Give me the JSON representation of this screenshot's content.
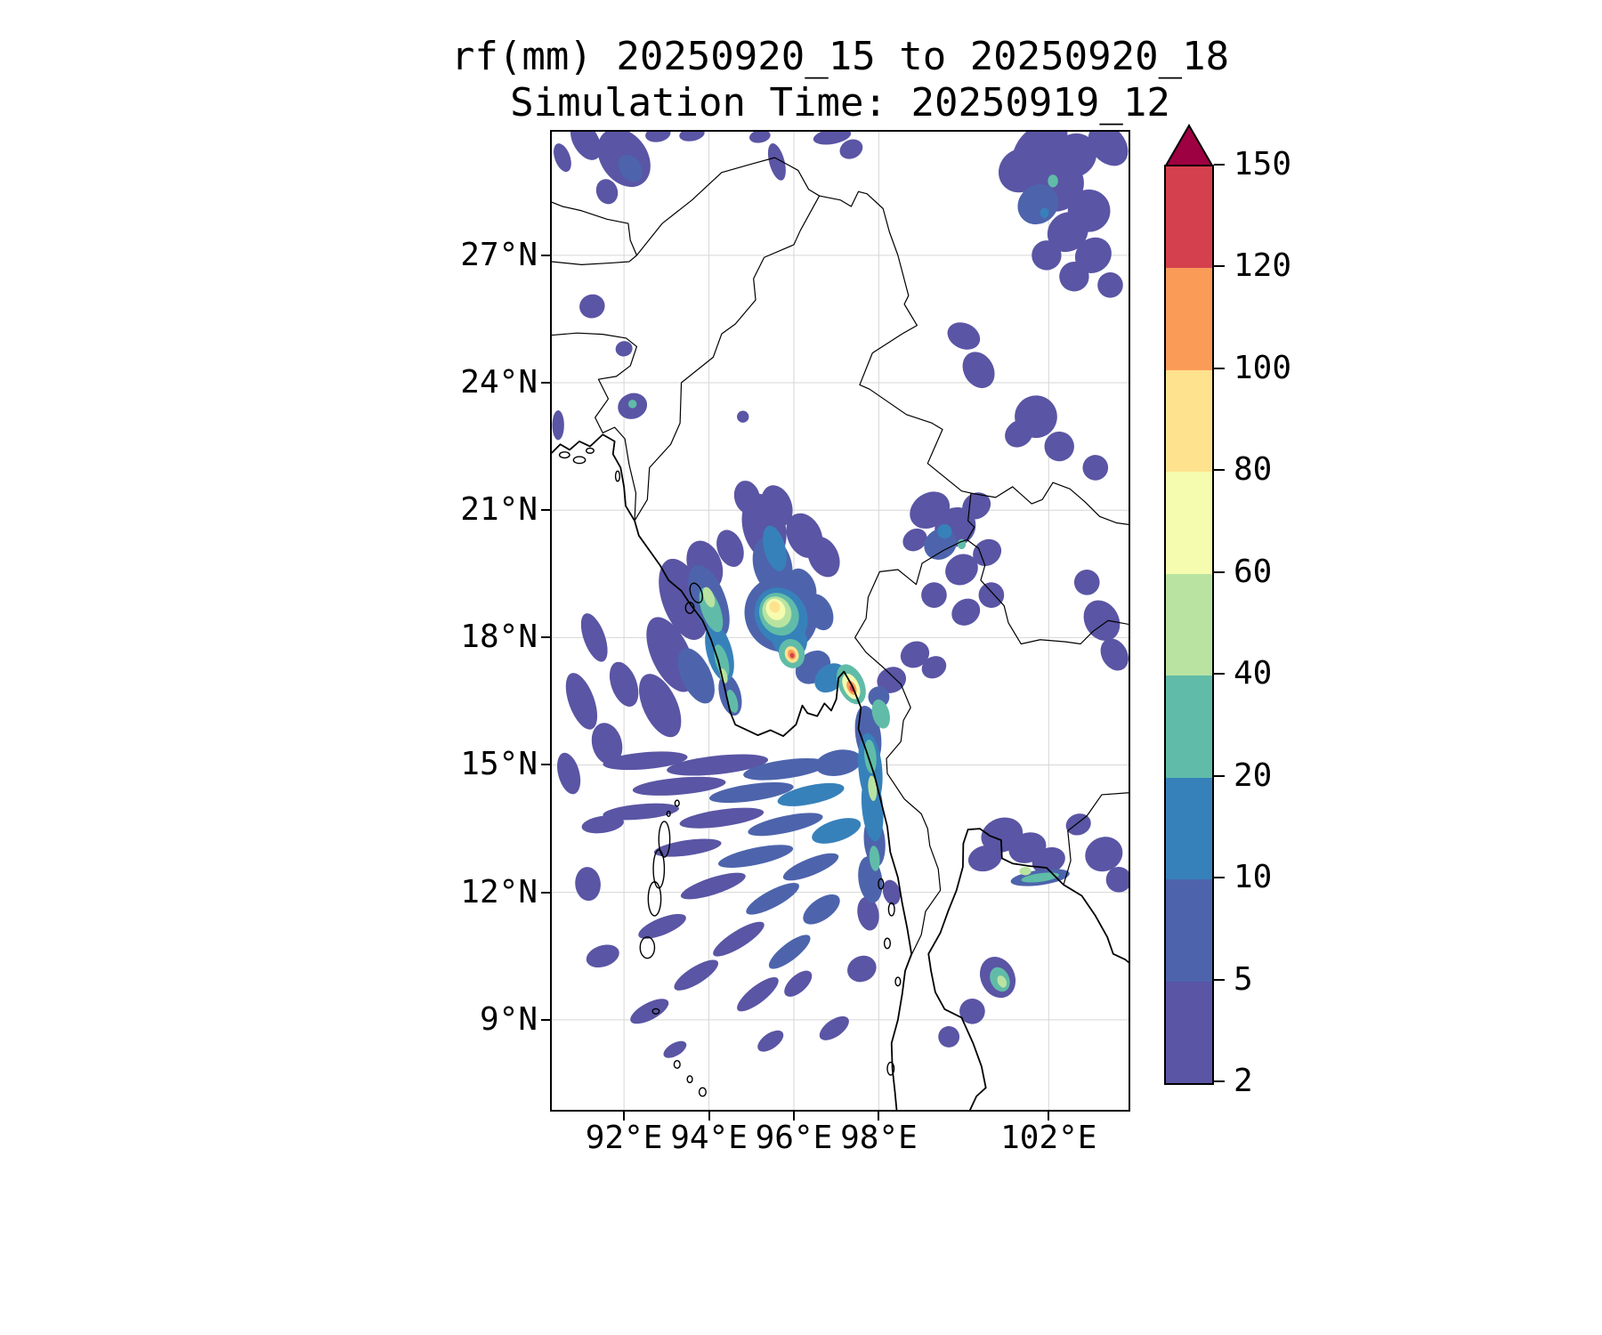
{
  "title": {
    "line1": "rf(mm) 20250920_15 to 20250920_18",
    "line2": "Simulation Time: 20250919_12"
  },
  "chart_data": {
    "type": "heatmap",
    "variable": "rf(mm)",
    "valid_period": "20250920_15 to 20250920_18",
    "simulation_time": "20250919_12",
    "geo": {
      "lon_min": 90.3,
      "lon_max": 103.88,
      "lat_min": 6.88,
      "lat_max": 29.91
    },
    "x_ticks": [
      {
        "value": 92,
        "label": "92°E"
      },
      {
        "value": 94,
        "label": "94°E"
      },
      {
        "value": 96,
        "label": "96°E"
      },
      {
        "value": 98,
        "label": "98°E"
      },
      {
        "value": 102,
        "label": "102°E"
      }
    ],
    "y_ticks": [
      {
        "value": 27,
        "label": "27°N"
      },
      {
        "value": 24,
        "label": "24°N"
      },
      {
        "value": 21,
        "label": "21°N"
      },
      {
        "value": 18,
        "label": "18°N"
      },
      {
        "value": 15,
        "label": "15°N"
      },
      {
        "value": 12,
        "label": "12°N"
      },
      {
        "value": 9,
        "label": "9°N"
      }
    ],
    "grid_color": "#d6d6d6",
    "coast_color": "#000000",
    "colorbar": {
      "levels": [
        2,
        5,
        10,
        20,
        40,
        60,
        80,
        100,
        120,
        150
      ],
      "tick_labels": [
        "2",
        "5",
        "10",
        "20",
        "40",
        "60",
        "80",
        "100",
        "120",
        "150"
      ],
      "colors": [
        "#5a55a4",
        "#4d64ac",
        "#3781ba",
        "#60bca8",
        "#b9e3a1",
        "#f5fbaf",
        "#fee28e",
        "#fa9b58",
        "#d5404e"
      ],
      "over_color": "#9e0142"
    },
    "rain_cells": [
      [
        91.1,
        29.7,
        0.3,
        0.5,
        -30,
        0
      ],
      [
        92.0,
        29.3,
        0.55,
        0.75,
        -35,
        0
      ],
      [
        92.15,
        29.05,
        0.25,
        0.35,
        -35,
        1
      ],
      [
        91.6,
        28.5,
        0.25,
        0.3,
        -20,
        0
      ],
      [
        92.8,
        29.85,
        0.3,
        0.18,
        -10,
        0
      ],
      [
        93.6,
        29.85,
        0.3,
        0.16,
        -10,
        0
      ],
      [
        90.55,
        29.3,
        0.18,
        0.35,
        -20,
        0
      ],
      [
        95.6,
        29.2,
        0.18,
        0.45,
        -15,
        0
      ],
      [
        95.2,
        29.8,
        0.25,
        0.15,
        -10,
        0
      ],
      [
        96.9,
        29.8,
        0.45,
        0.18,
        -10,
        0
      ],
      [
        97.35,
        29.5,
        0.28,
        0.22,
        -25,
        0
      ],
      [
        101.8,
        29.6,
        0.75,
        0.45,
        -40,
        0
      ],
      [
        102.6,
        29.35,
        0.55,
        0.5,
        -40,
        0
      ],
      [
        103.4,
        29.6,
        0.4,
        0.55,
        -40,
        0
      ],
      [
        101.35,
        29.0,
        0.55,
        0.5,
        -40,
        0
      ],
      [
        102.2,
        28.65,
        0.65,
        0.6,
        -40,
        0
      ],
      [
        101.75,
        28.2,
        0.5,
        0.45,
        -40,
        1
      ],
      [
        102.95,
        28.05,
        0.5,
        0.5,
        -40,
        0
      ],
      [
        102.1,
        28.75,
        0.12,
        0.15,
        0,
        3
      ],
      [
        102.45,
        27.55,
        0.5,
        0.45,
        -40,
        0
      ],
      [
        101.95,
        27.0,
        0.35,
        0.35,
        -40,
        0
      ],
      [
        103.05,
        27.0,
        0.45,
        0.4,
        -40,
        0
      ],
      [
        102.6,
        26.5,
        0.35,
        0.35,
        -40,
        0
      ],
      [
        103.45,
        26.3,
        0.3,
        0.3,
        -40,
        0
      ],
      [
        101.9,
        28.0,
        0.1,
        0.12,
        0,
        2
      ],
      [
        91.25,
        25.8,
        0.3,
        0.28,
        -15,
        0
      ],
      [
        92.0,
        24.8,
        0.2,
        0.18,
        -15,
        0
      ],
      [
        92.2,
        23.45,
        0.35,
        0.3,
        -20,
        0
      ],
      [
        92.2,
        23.5,
        0.1,
        0.1,
        0,
        3
      ],
      [
        90.45,
        23.0,
        0.14,
        0.35,
        0,
        0
      ],
      [
        94.8,
        23.2,
        0.14,
        0.14,
        0,
        0
      ],
      [
        100.0,
        25.1,
        0.4,
        0.3,
        25,
        0
      ],
      [
        100.35,
        24.3,
        0.35,
        0.45,
        -30,
        0
      ],
      [
        101.7,
        23.2,
        0.5,
        0.5,
        -40,
        0
      ],
      [
        101.3,
        22.8,
        0.35,
        0.3,
        -40,
        0
      ],
      [
        102.25,
        22.5,
        0.35,
        0.35,
        -40,
        0
      ],
      [
        103.1,
        22.0,
        0.3,
        0.3,
        -40,
        0
      ],
      [
        99.2,
        21.0,
        0.5,
        0.4,
        -35,
        0
      ],
      [
        99.8,
        20.6,
        0.5,
        0.45,
        -35,
        0
      ],
      [
        99.45,
        20.2,
        0.4,
        0.35,
        -35,
        1
      ],
      [
        100.3,
        21.1,
        0.35,
        0.3,
        -35,
        0
      ],
      [
        99.95,
        19.6,
        0.4,
        0.35,
        -35,
        0
      ],
      [
        100.55,
        20.0,
        0.35,
        0.3,
        -35,
        0
      ],
      [
        99.3,
        19.0,
        0.3,
        0.3,
        -35,
        0
      ],
      [
        100.05,
        18.6,
        0.35,
        0.3,
        -35,
        0
      ],
      [
        99.55,
        20.5,
        0.17,
        0.17,
        0,
        2
      ],
      [
        100.65,
        19.0,
        0.3,
        0.3,
        -35,
        0
      ],
      [
        99.95,
        20.2,
        0.1,
        0.12,
        0,
        3
      ],
      [
        98.85,
        20.3,
        0.3,
        0.25,
        -35,
        0
      ],
      [
        103.25,
        18.4,
        0.4,
        0.5,
        -30,
        0
      ],
      [
        103.55,
        17.6,
        0.3,
        0.4,
        -30,
        0
      ],
      [
        102.9,
        19.3,
        0.3,
        0.3,
        -30,
        0
      ],
      [
        95.3,
        20.6,
        0.5,
        0.8,
        -15,
        0
      ],
      [
        94.9,
        21.3,
        0.3,
        0.4,
        -15,
        0
      ],
      [
        95.6,
        21.1,
        0.35,
        0.5,
        -20,
        0
      ],
      [
        96.25,
        20.4,
        0.4,
        0.55,
        -25,
        0
      ],
      [
        96.7,
        19.9,
        0.35,
        0.5,
        -25,
        0
      ],
      [
        95.5,
        19.7,
        0.45,
        0.7,
        -15,
        1
      ],
      [
        95.55,
        20.1,
        0.25,
        0.55,
        -15,
        2
      ],
      [
        96.2,
        19.2,
        0.3,
        0.45,
        -25,
        1
      ],
      [
        96.6,
        18.6,
        0.3,
        0.45,
        -25,
        1
      ],
      [
        95.7,
        18.55,
        0.85,
        0.9,
        -30,
        1
      ],
      [
        95.7,
        18.5,
        0.6,
        0.7,
        -30,
        2
      ],
      [
        95.65,
        18.55,
        0.45,
        0.52,
        -30,
        3
      ],
      [
        95.6,
        18.6,
        0.33,
        0.38,
        -30,
        4
      ],
      [
        95.57,
        18.66,
        0.22,
        0.26,
        -30,
        5
      ],
      [
        95.55,
        18.72,
        0.12,
        0.14,
        -30,
        6
      ],
      [
        95.9,
        17.95,
        0.4,
        0.45,
        -30,
        2
      ],
      [
        95.95,
        17.62,
        0.3,
        0.35,
        -20,
        3
      ],
      [
        95.95,
        17.6,
        0.16,
        0.2,
        -20,
        6
      ],
      [
        95.95,
        17.6,
        0.09,
        0.12,
        -20,
        7
      ],
      [
        95.96,
        17.58,
        0.05,
        0.06,
        -20,
        8
      ],
      [
        96.45,
        17.3,
        0.45,
        0.35,
        -40,
        1
      ],
      [
        96.85,
        17.05,
        0.4,
        0.3,
        -40,
        2
      ],
      [
        97.35,
        16.9,
        0.3,
        0.5,
        -25,
        3
      ],
      [
        97.35,
        16.85,
        0.18,
        0.32,
        -25,
        5
      ],
      [
        97.36,
        16.82,
        0.1,
        0.18,
        -25,
        7
      ],
      [
        97.37,
        16.8,
        0.05,
        0.08,
        -25,
        8
      ],
      [
        98.3,
        17.0,
        0.35,
        0.3,
        -25,
        0
      ],
      [
        98.0,
        16.6,
        0.25,
        0.25,
        -25,
        1
      ],
      [
        98.85,
        17.6,
        0.35,
        0.3,
        -30,
        0
      ],
      [
        99.3,
        17.3,
        0.3,
        0.25,
        -30,
        0
      ],
      [
        94.0,
        18.85,
        0.4,
        0.9,
        -20,
        1
      ],
      [
        94.05,
        18.65,
        0.22,
        0.55,
        -20,
        3
      ],
      [
        94.0,
        18.95,
        0.12,
        0.25,
        -20,
        4
      ],
      [
        94.25,
        17.65,
        0.3,
        0.7,
        -15,
        2
      ],
      [
        94.3,
        17.45,
        0.15,
        0.4,
        -15,
        3
      ],
      [
        94.5,
        16.65,
        0.25,
        0.5,
        -15,
        1
      ],
      [
        94.55,
        16.5,
        0.12,
        0.28,
        -15,
        3
      ],
      [
        94.35,
        17.1,
        0.08,
        0.18,
        -15,
        4
      ],
      [
        93.4,
        18.9,
        0.5,
        1.0,
        -20,
        0
      ],
      [
        93.1,
        17.6,
        0.45,
        0.95,
        -25,
        0
      ],
      [
        93.7,
        17.1,
        0.35,
        0.7,
        -25,
        1
      ],
      [
        92.85,
        16.4,
        0.4,
        0.8,
        -25,
        0
      ],
      [
        93.9,
        19.7,
        0.4,
        0.6,
        -20,
        0
      ],
      [
        94.5,
        20.1,
        0.3,
        0.45,
        -20,
        0
      ],
      [
        91.3,
        18.0,
        0.25,
        0.6,
        -20,
        0
      ],
      [
        91.0,
        16.5,
        0.3,
        0.7,
        -20,
        0
      ],
      [
        91.6,
        15.5,
        0.35,
        0.5,
        -15,
        0
      ],
      [
        90.7,
        14.8,
        0.25,
        0.5,
        -15,
        0
      ],
      [
        92.0,
        16.9,
        0.3,
        0.55,
        -20,
        0
      ],
      [
        92.5,
        15.1,
        1.0,
        0.2,
        -5,
        0
      ],
      [
        94.2,
        15.0,
        1.2,
        0.22,
        -6,
        0
      ],
      [
        95.8,
        14.9,
        1.0,
        0.22,
        -8,
        1
      ],
      [
        97.05,
        15.05,
        0.55,
        0.3,
        -10,
        1
      ],
      [
        93.3,
        14.5,
        1.1,
        0.2,
        -5,
        0
      ],
      [
        95.0,
        14.35,
        1.0,
        0.2,
        -8,
        1
      ],
      [
        96.4,
        14.3,
        0.8,
        0.22,
        -12,
        2
      ],
      [
        92.4,
        13.9,
        0.9,
        0.18,
        -5,
        0
      ],
      [
        94.3,
        13.75,
        1.0,
        0.2,
        -8,
        0
      ],
      [
        95.8,
        13.6,
        0.9,
        0.2,
        -12,
        1
      ],
      [
        97.0,
        13.45,
        0.6,
        0.25,
        -18,
        2
      ],
      [
        93.5,
        13.05,
        0.8,
        0.18,
        -8,
        0
      ],
      [
        95.1,
        12.85,
        0.9,
        0.2,
        -12,
        1
      ],
      [
        96.4,
        12.6,
        0.7,
        0.2,
        -22,
        1
      ],
      [
        94.1,
        12.15,
        0.8,
        0.2,
        -18,
        0
      ],
      [
        95.5,
        11.85,
        0.7,
        0.2,
        -28,
        1
      ],
      [
        96.65,
        11.6,
        0.5,
        0.25,
        -35,
        1
      ],
      [
        92.9,
        11.2,
        0.6,
        0.2,
        -22,
        0
      ],
      [
        94.7,
        10.9,
        0.7,
        0.2,
        -32,
        0
      ],
      [
        95.9,
        10.6,
        0.6,
        0.2,
        -38,
        1
      ],
      [
        93.7,
        10.05,
        0.6,
        0.2,
        -32,
        0
      ],
      [
        95.15,
        9.6,
        0.6,
        0.2,
        -38,
        0
      ],
      [
        92.6,
        9.2,
        0.5,
        0.2,
        -28,
        0
      ],
      [
        96.1,
        9.85,
        0.4,
        0.2,
        -42,
        0
      ],
      [
        97.6,
        10.2,
        0.35,
        0.3,
        -25,
        0
      ],
      [
        91.5,
        10.5,
        0.4,
        0.25,
        -18,
        0
      ],
      [
        91.15,
        12.2,
        0.3,
        0.4,
        -5,
        0
      ],
      [
        91.5,
        13.6,
        0.5,
        0.2,
        -8,
        0
      ],
      [
        96.95,
        8.8,
        0.4,
        0.2,
        -35,
        0
      ],
      [
        95.45,
        8.5,
        0.35,
        0.18,
        -35,
        0
      ],
      [
        93.2,
        8.3,
        0.3,
        0.15,
        -30,
        0
      ],
      [
        97.75,
        15.7,
        0.3,
        0.7,
        -8,
        1
      ],
      [
        97.8,
        14.9,
        0.28,
        0.85,
        -5,
        2
      ],
      [
        97.85,
        14.0,
        0.25,
        0.8,
        -5,
        2
      ],
      [
        97.8,
        15.2,
        0.14,
        0.4,
        -5,
        3
      ],
      [
        97.85,
        14.45,
        0.1,
        0.3,
        -5,
        4
      ],
      [
        97.9,
        13.2,
        0.25,
        0.6,
        -5,
        1
      ],
      [
        97.8,
        12.3,
        0.28,
        0.55,
        -8,
        1
      ],
      [
        97.9,
        12.8,
        0.12,
        0.3,
        -5,
        3
      ],
      [
        98.05,
        16.2,
        0.2,
        0.35,
        -15,
        3
      ],
      [
        97.75,
        11.5,
        0.25,
        0.4,
        -10,
        0
      ],
      [
        98.3,
        12.0,
        0.2,
        0.3,
        -15,
        0
      ],
      [
        100.9,
        13.35,
        0.5,
        0.4,
        -20,
        0
      ],
      [
        101.5,
        13.05,
        0.45,
        0.35,
        -20,
        0
      ],
      [
        100.5,
        12.8,
        0.4,
        0.3,
        -15,
        0
      ],
      [
        102.0,
        12.75,
        0.4,
        0.3,
        -20,
        0
      ],
      [
        102.7,
        13.6,
        0.3,
        0.25,
        -20,
        0
      ],
      [
        101.8,
        12.35,
        0.7,
        0.18,
        -8,
        1
      ],
      [
        101.8,
        12.35,
        0.45,
        0.1,
        -8,
        3
      ],
      [
        101.45,
        12.5,
        0.14,
        0.1,
        0,
        4
      ],
      [
        103.3,
        12.9,
        0.45,
        0.4,
        -25,
        0
      ],
      [
        103.65,
        12.3,
        0.3,
        0.3,
        -25,
        0
      ],
      [
        100.8,
        10.0,
        0.4,
        0.5,
        -25,
        0
      ],
      [
        100.85,
        9.95,
        0.22,
        0.3,
        -25,
        3
      ],
      [
        100.9,
        9.9,
        0.1,
        0.15,
        -25,
        4
      ],
      [
        100.2,
        9.2,
        0.3,
        0.3,
        -20,
        0
      ],
      [
        99.65,
        8.6,
        0.25,
        0.25,
        -20,
        0
      ]
    ]
  }
}
